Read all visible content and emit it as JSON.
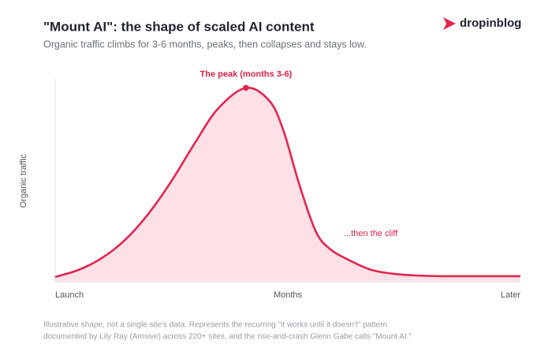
{
  "brand": "dropinblog",
  "chart_data": {
    "type": "area",
    "title": "\"Mount AI\": the shape of scaled AI content",
    "subtitle": "Organic traffic climbs for 3-6 months, peaks, then collapses and stays low.",
    "xlabel": "Months",
    "ylabel": "Organic traffic",
    "peak_annotation": "The peak (months 3-6)",
    "cliff_annotation": "...then the cliff",
    "footnote": [
      "Illustrative shape, not a single site's data. Represents the recurring \"it works until it doesn't\" pattern",
      "documented by Lily Ray (Amsive) across 220+ sites, and the rise-and-crash Glenn Gabe calls \"Mount AI.\""
    ],
    "x": [
      0,
      5,
      10,
      15,
      20,
      25,
      30,
      35,
      41,
      46,
      49,
      52.5,
      56,
      59,
      63,
      68,
      73,
      78,
      83,
      90,
      100
    ],
    "values": [
      2.4,
      5.9,
      11.8,
      20.9,
      33.9,
      50.4,
      69.3,
      86.6,
      97,
      90.6,
      76,
      48.4,
      25.2,
      16.5,
      11,
      5.9,
      3.9,
      3.1,
      2.8,
      2.8,
      2.8
    ],
    "xlim": [
      0,
      100
    ],
    "ylim": [
      0,
      100
    ],
    "xticks": [
      {
        "value": 0,
        "label": "Launch"
      },
      {
        "value": 100,
        "label": "Later"
      }
    ],
    "color": "#e0264f",
    "fill_color": "#fde1e7"
  }
}
